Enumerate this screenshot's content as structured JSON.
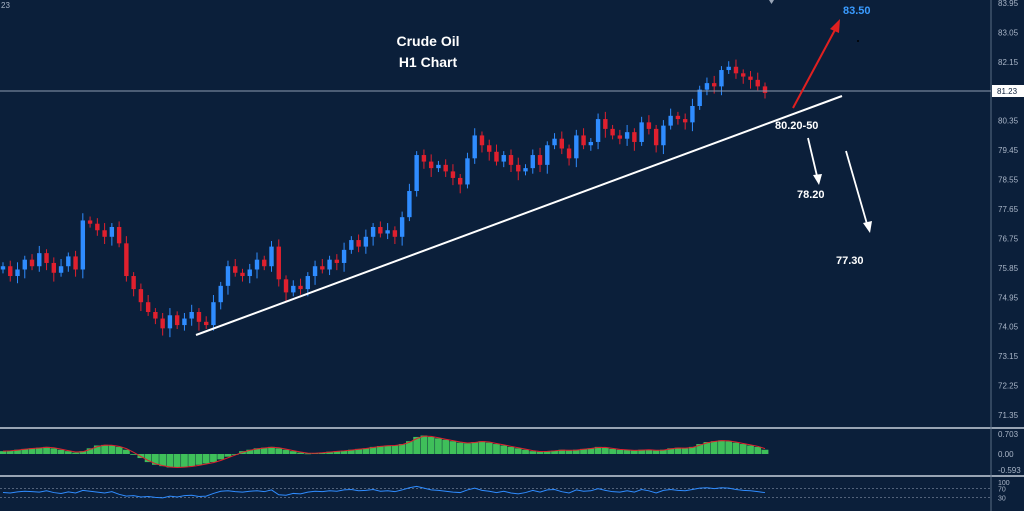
{
  "chart_data": {
    "type": "candlestick",
    "title": "Crude Oil",
    "subtitle": "H1 Chart",
    "top_left_label": "23",
    "price_axis_ticks": [
      "83.95",
      "83.05",
      "82.15",
      "81.23",
      "80.35",
      "79.45",
      "78.55",
      "77.65",
      "76.75",
      "75.85",
      "74.95",
      "74.05",
      "73.15",
      "72.25",
      "71.35"
    ],
    "price_axis_ticks_values": [
      83.95,
      83.05,
      82.15,
      80.35,
      79.45,
      78.55,
      77.65,
      76.75,
      75.85,
      74.95,
      74.05,
      73.15,
      72.25,
      71.35
    ],
    "ylim": [
      71.0,
      84.1
    ],
    "current_price": 81.23,
    "current_price_label": "81.23",
    "close_path": [
      75.9,
      75.6,
      75.8,
      76.1,
      75.9,
      76.3,
      76.0,
      75.7,
      75.9,
      76.2,
      75.8,
      77.3,
      77.2,
      77.0,
      76.8,
      77.1,
      76.6,
      75.6,
      75.2,
      74.8,
      74.5,
      74.3,
      74.0,
      74.4,
      74.1,
      74.3,
      74.5,
      74.2,
      74.1,
      74.8,
      75.3,
      75.9,
      75.7,
      75.6,
      75.8,
      76.1,
      75.9,
      76.5,
      75.5,
      75.1,
      75.3,
      75.2,
      75.6,
      75.9,
      75.8,
      76.1,
      76.0,
      76.4,
      76.7,
      76.5,
      76.8,
      77.1,
      76.9,
      77.0,
      76.8,
      77.4,
      78.2,
      79.3,
      79.1,
      78.9,
      79.0,
      78.8,
      78.6,
      78.4,
      79.2,
      79.9,
      79.6,
      79.4,
      79.1,
      79.3,
      79.0,
      78.8,
      78.9,
      79.3,
      79.0,
      79.6,
      79.8,
      79.5,
      79.2,
      79.9,
      79.6,
      79.7,
      80.4,
      80.1,
      79.9,
      79.8,
      80.0,
      79.7,
      80.3,
      80.1,
      79.6,
      80.2,
      80.5,
      80.4,
      80.3,
      80.8,
      81.3,
      81.5,
      81.4,
      81.9,
      82.0,
      81.8,
      81.7,
      81.6,
      81.4,
      81.2
    ],
    "trendline": {
      "start": [
        0,
        74.2
      ],
      "end": [
        118,
        81.0
      ]
    },
    "annotations": [
      {
        "label": "83.50",
        "kind": "target-up",
        "color": "#3a9bff"
      },
      {
        "label": "80.20-50",
        "kind": "support",
        "color": "#ffffff"
      },
      {
        "label": "78.20",
        "kind": "target-down",
        "color": "#ffffff"
      },
      {
        "label": "77.30",
        "kind": "target-down",
        "color": "#ffffff"
      }
    ],
    "macd_ticks": [
      "0.703",
      "0.00",
      "-0.593"
    ],
    "macd_ticks_values": [
      0.703,
      0.0,
      -0.593
    ],
    "macd_values": [
      0.1,
      0.12,
      0.15,
      0.18,
      0.2,
      0.22,
      0.25,
      0.2,
      0.15,
      0.1,
      0.05,
      0.1,
      0.2,
      0.3,
      0.32,
      0.3,
      0.25,
      0.15,
      0.0,
      -0.15,
      -0.3,
      -0.4,
      -0.45,
      -0.5,
      -0.5,
      -0.48,
      -0.45,
      -0.4,
      -0.35,
      -0.3,
      -0.2,
      -0.1,
      0.0,
      0.1,
      0.15,
      0.2,
      0.22,
      0.25,
      0.2,
      0.15,
      0.1,
      0.05,
      0.02,
      0.03,
      0.05,
      0.08,
      0.1,
      0.12,
      0.15,
      0.18,
      0.2,
      0.25,
      0.28,
      0.3,
      0.3,
      0.35,
      0.45,
      0.6,
      0.65,
      0.6,
      0.55,
      0.5,
      0.45,
      0.4,
      0.38,
      0.42,
      0.45,
      0.4,
      0.35,
      0.3,
      0.25,
      0.2,
      0.15,
      0.1,
      0.08,
      0.1,
      0.12,
      0.15,
      0.12,
      0.15,
      0.18,
      0.2,
      0.25,
      0.22,
      0.18,
      0.15,
      0.14,
      0.12,
      0.15,
      0.15,
      0.12,
      0.15,
      0.2,
      0.22,
      0.2,
      0.25,
      0.35,
      0.42,
      0.45,
      0.48,
      0.45,
      0.4,
      0.35,
      0.3,
      0.25,
      0.15
    ],
    "rsi_ticks": [
      "100",
      "70",
      "30"
    ],
    "rsi_ticks_values": [
      100,
      70,
      30
    ],
    "rsi_values": [
      52,
      50,
      55,
      58,
      56,
      54,
      60,
      52,
      48,
      55,
      50,
      62,
      58,
      54,
      50,
      56,
      44,
      36,
      38,
      32,
      34,
      30,
      28,
      36,
      32,
      38,
      40,
      34,
      36,
      48,
      58,
      60,
      56,
      54,
      58,
      60,
      56,
      64,
      42,
      40,
      48,
      46,
      54,
      58,
      56,
      60,
      58,
      64,
      66,
      60,
      62,
      66,
      58,
      60,
      56,
      64,
      74,
      80,
      72,
      64,
      62,
      58,
      54,
      52,
      64,
      72,
      62,
      58,
      52,
      58,
      50,
      46,
      52,
      62,
      54,
      64,
      66,
      56,
      50,
      64,
      58,
      60,
      70,
      62,
      56,
      54,
      60,
      54,
      66,
      60,
      50,
      62,
      66,
      62,
      60,
      66,
      72,
      74,
      70,
      74,
      72,
      66,
      62,
      60,
      56,
      52
    ]
  }
}
